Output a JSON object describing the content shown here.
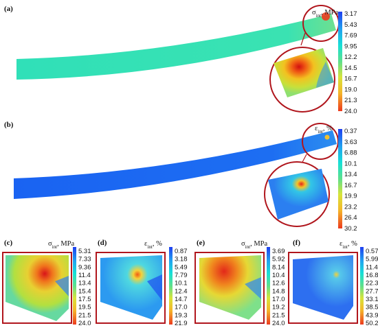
{
  "colors": {
    "frame": "#b0151c",
    "scale": [
      "#1f3ef0",
      "#21a3f0",
      "#18e0d6",
      "#5ee08c",
      "#d8e43a",
      "#f5b52a",
      "#ec3a1e"
    ]
  },
  "panels": {
    "a": {
      "label": "(a)",
      "quantity": "σ",
      "subscript": "int",
      "unit": ", MPa",
      "ticks": [
        "3.17",
        "5.43",
        "7.69",
        "9.95",
        "12.2",
        "14.5",
        "16.7",
        "19.0",
        "21.3",
        "24.0"
      ]
    },
    "b": {
      "label": "(b)",
      "quantity": "ε",
      "subscript": "int",
      "unit": ", %",
      "ticks": [
        "0.37",
        "3.63",
        "6.88",
        "10.1",
        "13.4",
        "16.7",
        "19.9",
        "23.2",
        "26.4",
        "30.2"
      ]
    },
    "c": {
      "label": "(c)",
      "quantity": "σ",
      "subscript": "int",
      "unit": ", MPa",
      "ticks": [
        "5.31",
        "7.33",
        "9.36",
        "11.4",
        "13.4",
        "15.4",
        "17.5",
        "19.5",
        "21.5",
        "24.0"
      ]
    },
    "d": {
      "label": "(d)",
      "quantity": "ε",
      "subscript": "int",
      "unit": ", %",
      "ticks": [
        "0.87",
        "3.18",
        "5.49",
        "7.79",
        "10.1",
        "12.4",
        "14.7",
        "17.0",
        "19.3",
        "21.9"
      ]
    },
    "e": {
      "label": "(e)",
      "quantity": "σ",
      "subscript": "int",
      "unit": ", MPa",
      "ticks": [
        "3.69",
        "5.92",
        "8.14",
        "10.4",
        "12.6",
        "14.8",
        "17.0",
        "19.2",
        "21.5",
        "24.0"
      ]
    },
    "f": {
      "label": "(f)",
      "quantity": "ε",
      "subscript": "int",
      "unit": ", %",
      "ticks": [
        "0.57",
        "5.99",
        "11.4",
        "16.8",
        "22.3",
        "27.7",
        "33.1",
        "38.5",
        "43.9",
        "50.2"
      ]
    }
  }
}
